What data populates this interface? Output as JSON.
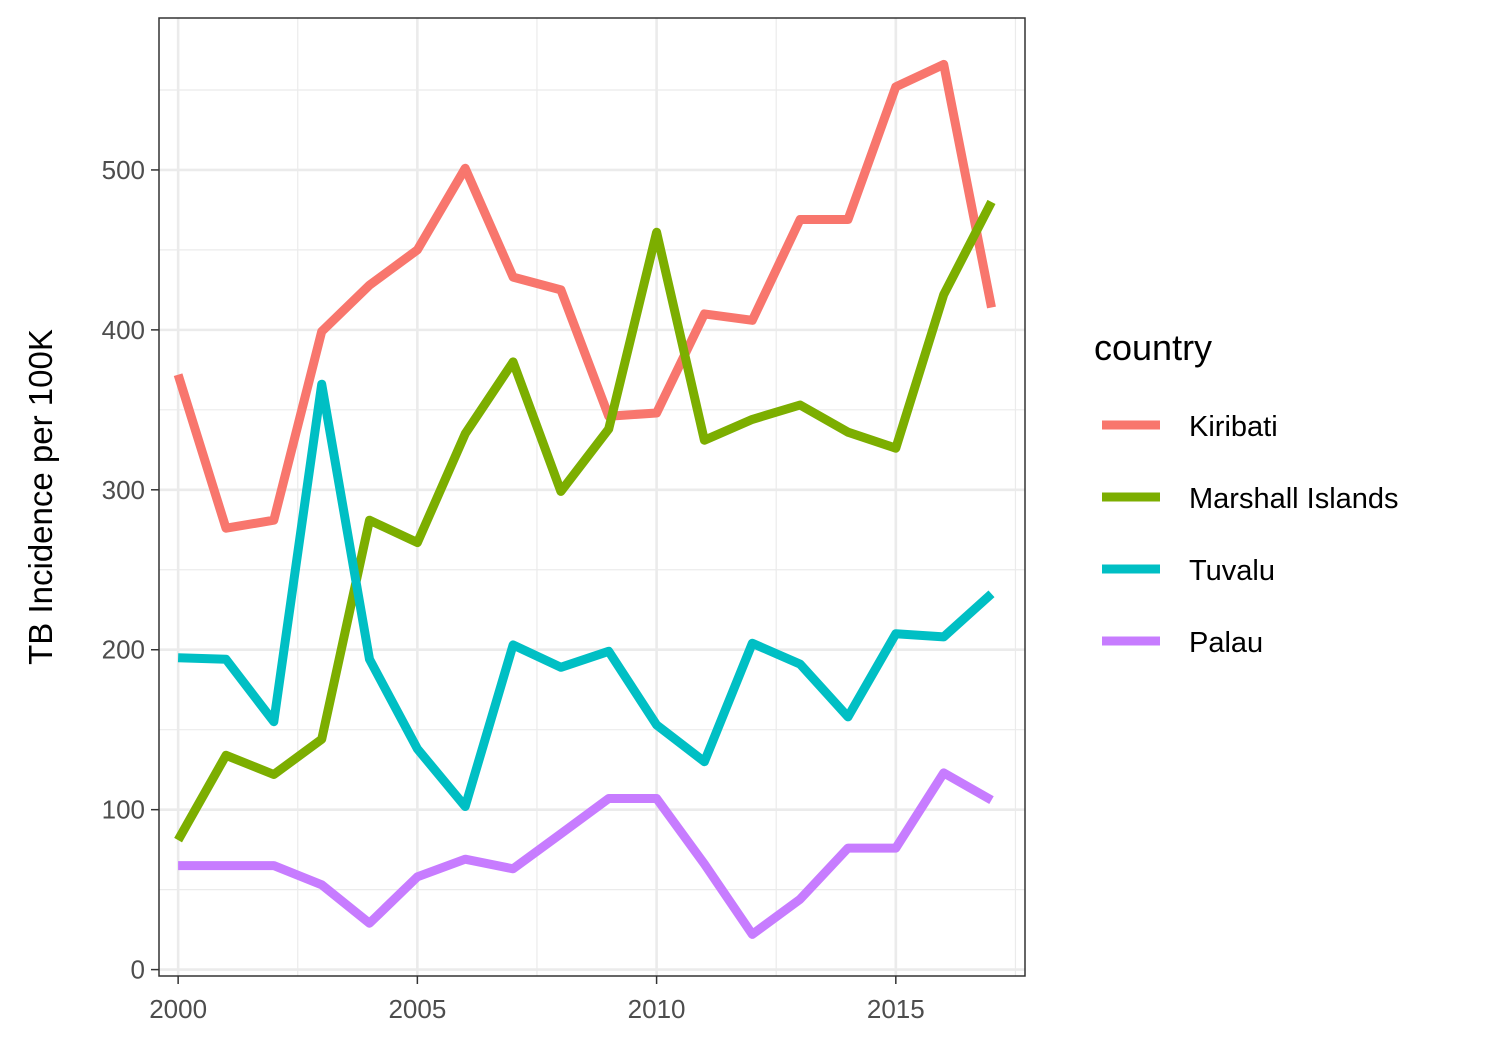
{
  "chart_data": {
    "type": "line",
    "title": "",
    "xlabel": "",
    "ylabel": "TB Incidence per 100K",
    "xlim": [
      1999.6,
      2017.7
    ],
    "ylim": [
      -4,
      595
    ],
    "x_ticks": [
      2000,
      2005,
      2010,
      2015
    ],
    "y_ticks": [
      0,
      100,
      200,
      300,
      400,
      500
    ],
    "grid": true,
    "legend": {
      "title": "country",
      "position": "right"
    },
    "x": [
      2000,
      2001,
      2002,
      2003,
      2004,
      2005,
      2006,
      2007,
      2008,
      2009,
      2010,
      2011,
      2012,
      2013,
      2014,
      2015,
      2016,
      2017
    ],
    "series": [
      {
        "name": "Kiribati",
        "color": "#F8766D",
        "values": [
          372,
          276,
          281,
          399,
          428,
          450,
          501,
          433,
          425,
          346,
          348,
          410,
          406,
          469,
          469,
          552,
          566,
          414
        ]
      },
      {
        "name": "Marshall Islands",
        "color": "#7CAE00",
        "values": [
          81,
          134,
          122,
          144,
          281,
          267,
          335,
          380,
          299,
          338,
          461,
          331,
          344,
          353,
          336,
          326,
          422,
          480
        ]
      },
      {
        "name": "Tuvalu",
        "color": "#00BFC4",
        "values": [
          195,
          194,
          155,
          366,
          194,
          138,
          102,
          203,
          189,
          199,
          153,
          130,
          204,
          191,
          158,
          210,
          208,
          235
        ]
      },
      {
        "name": "Palau",
        "color": "#C77CFF",
        "values": [
          65,
          65,
          65,
          53,
          29,
          58,
          69,
          63,
          85,
          107,
          107,
          66,
          22,
          44,
          76,
          76,
          123,
          106
        ]
      }
    ]
  }
}
